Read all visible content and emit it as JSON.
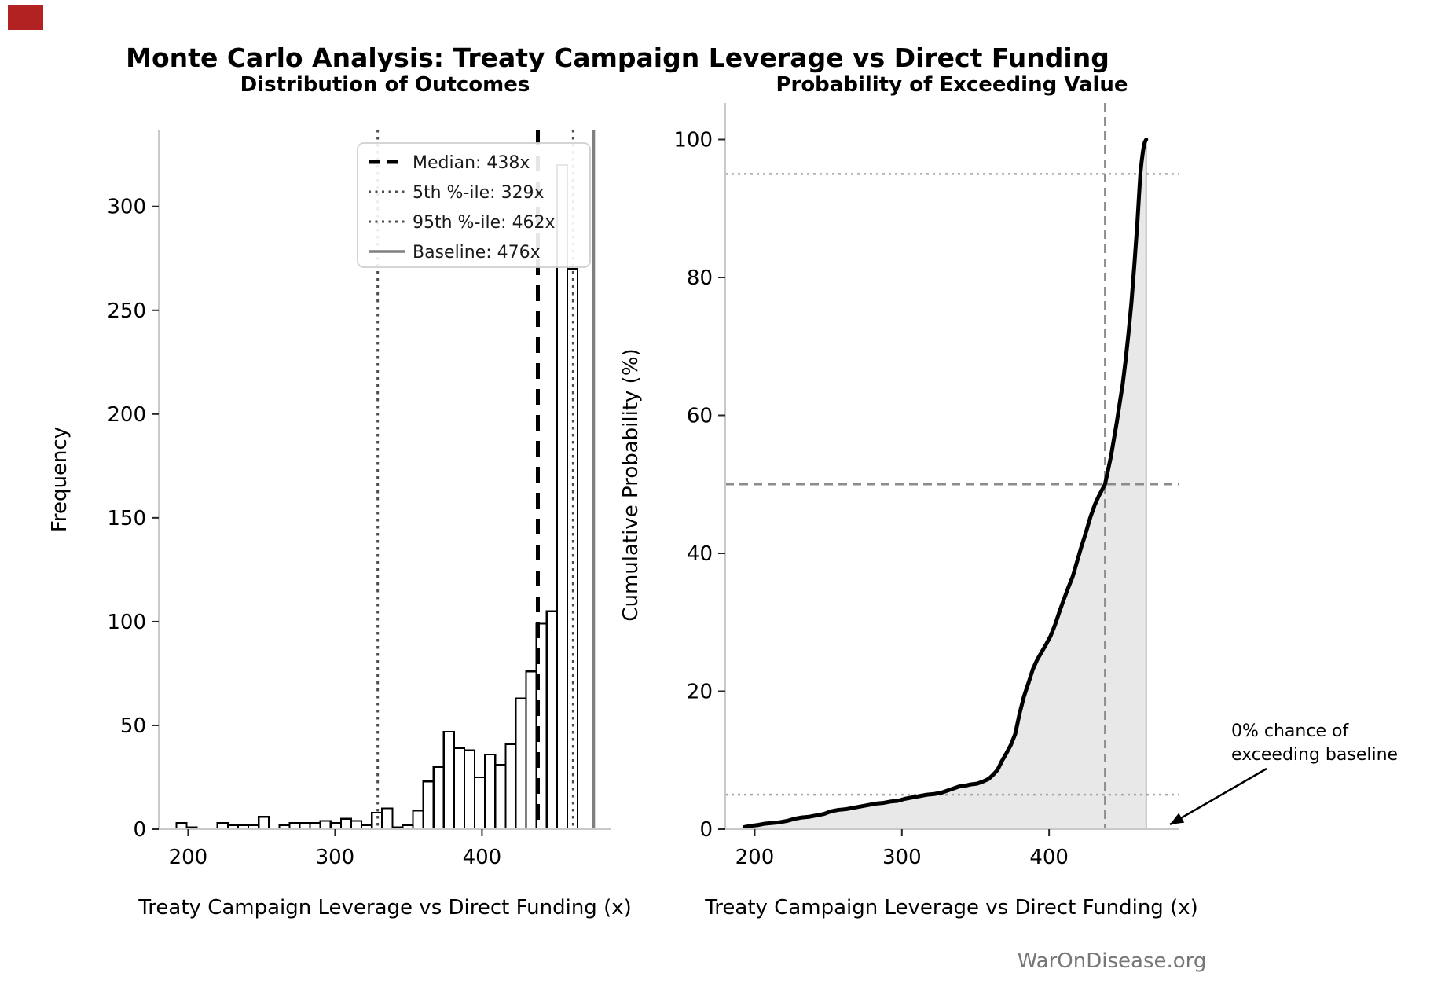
{
  "header": {
    "suptitle": "Monte Carlo Analysis: Treaty Campaign Leverage vs Direct Funding"
  },
  "footer": {
    "watermark": "WarOnDisease.org"
  },
  "colors": {
    "marker": "#b22222",
    "bar_fill": "#ffffff",
    "bar_edge": "#000000",
    "spine": "#c9c9c9",
    "tick": "#262626",
    "fill_area": "#d9d9d9",
    "curve": "#000000",
    "watermark": "#777777"
  },
  "chart_data": [
    {
      "type": "bar",
      "subtype": "histogram",
      "title": "Distribution of Outcomes",
      "xlabel": "Treaty Campaign Leverage vs Direct Funding (x)",
      "ylabel": "Frequency",
      "xlim": [
        180,
        488
      ],
      "ylim": [
        0,
        337
      ],
      "x_ticks": [
        200,
        300,
        400
      ],
      "y_ticks": [
        0,
        50,
        100,
        150,
        200,
        250,
        300
      ],
      "bin_start": 192,
      "bin_width": 7,
      "frequencies": [
        3,
        1,
        0,
        0,
        3,
        2,
        2,
        2,
        6,
        0,
        2,
        3,
        3,
        3,
        4,
        3,
        5,
        4,
        2,
        8,
        10,
        1,
        2,
        9,
        23,
        30,
        47,
        39,
        38,
        25,
        36,
        31,
        41,
        63,
        76,
        99,
        105,
        320,
        270
      ],
      "ref_lines": [
        {
          "label": "Median: 438x",
          "value": 438,
          "style": "dashed",
          "color": "#000000",
          "width": 5,
          "dash": "20 13"
        },
        {
          "label": "5th %-ile: 329x",
          "value": 329,
          "style": "dotted",
          "color": "#4d4d4d",
          "width": 3,
          "dash": "3.5 5.5"
        },
        {
          "label": "95th %-ile: 462x",
          "value": 462,
          "style": "dotted",
          "color": "#4d4d4d",
          "width": 3,
          "dash": "3.5 5.5"
        },
        {
          "label": "Baseline: 476x",
          "value": 476,
          "style": "solid",
          "color": "#7f7f7f",
          "width": 3.5,
          "dash": ""
        }
      ],
      "legend_position": "upper center",
      "grid": false
    },
    {
      "type": "line",
      "title": "Probability of Exceeding Value",
      "xlabel": "Treaty Campaign Leverage vs Direct Funding (x)",
      "ylabel": "Cumulative Probability (%)",
      "xlim": [
        180,
        488
      ],
      "ylim": [
        0,
        105.3
      ],
      "x_ticks": [
        200,
        300,
        400
      ],
      "y_ticks": [
        0,
        20,
        40,
        60,
        80,
        100
      ],
      "fill": true,
      "series": [
        {
          "name": "cumulative probability",
          "points": [
            [
              193,
              0.3
            ],
            [
              198,
              0.5
            ],
            [
              202,
              0.6
            ],
            [
              207,
              0.8
            ],
            [
              212,
              0.9
            ],
            [
              217,
              1.0
            ],
            [
              222,
              1.2
            ],
            [
              227,
              1.5
            ],
            [
              232,
              1.7
            ],
            [
              237,
              1.8
            ],
            [
              242,
              2.0
            ],
            [
              247,
              2.2
            ],
            [
              252,
              2.6
            ],
            [
              257,
              2.8
            ],
            [
              262,
              2.9
            ],
            [
              267,
              3.1
            ],
            [
              272,
              3.3
            ],
            [
              277,
              3.5
            ],
            [
              282,
              3.7
            ],
            [
              287,
              3.8
            ],
            [
              292,
              4.0
            ],
            [
              297,
              4.1
            ],
            [
              302,
              4.4
            ],
            [
              307,
              4.6
            ],
            [
              312,
              4.8
            ],
            [
              317,
              5.0
            ],
            [
              322,
              5.1
            ],
            [
              327,
              5.3
            ],
            [
              331,
              5.6
            ],
            [
              335,
              5.9
            ],
            [
              339,
              6.2
            ],
            [
              343,
              6.3
            ],
            [
              347,
              6.5
            ],
            [
              351,
              6.6
            ],
            [
              355,
              6.9
            ],
            [
              359,
              7.3
            ],
            [
              362,
              7.9
            ],
            [
              365,
              8.6
            ],
            [
              368,
              9.9
            ],
            [
              371,
              11.0
            ],
            [
              374,
              12.2
            ],
            [
              377,
              13.8
            ],
            [
              380,
              16.8
            ],
            [
              383,
              19.3
            ],
            [
              386,
              21.2
            ],
            [
              389,
              23.2
            ],
            [
              392,
              24.6
            ],
            [
              395,
              25.7
            ],
            [
              398,
              26.8
            ],
            [
              401,
              28.0
            ],
            [
              404,
              29.6
            ],
            [
              407,
              31.5
            ],
            [
              410,
              33.3
            ],
            [
              413,
              35.0
            ],
            [
              416,
              36.6
            ],
            [
              419,
              38.8
            ],
            [
              422,
              41.0
            ],
            [
              425,
              43.0
            ],
            [
              428,
              45.2
            ],
            [
              431,
              47.0
            ],
            [
              434,
              48.4
            ],
            [
              438,
              50.0
            ],
            [
              440,
              52.0
            ],
            [
              442,
              54.0
            ],
            [
              444,
              56.5
            ],
            [
              446,
              59.0
            ],
            [
              448,
              61.8
            ],
            [
              450,
              64.5
            ],
            [
              452,
              68.0
            ],
            [
              454,
              72.0
            ],
            [
              456,
              76.5
            ],
            [
              458,
              82.0
            ],
            [
              460,
              88.0
            ],
            [
              462,
              95.0
            ],
            [
              463,
              97.0
            ],
            [
              464,
              98.6
            ],
            [
              465,
              99.6
            ],
            [
              466,
              100.0
            ]
          ]
        }
      ],
      "ref_lines": [
        {
          "axis": "y",
          "value": 95,
          "style": "dotted",
          "color": "#a6a6a6",
          "width": 2.5,
          "dash": "3 5"
        },
        {
          "axis": "y",
          "value": 50,
          "style": "dashed",
          "color": "#8c8c8c",
          "width": 2.5,
          "dash": "11 7"
        },
        {
          "axis": "y",
          "value": 5,
          "style": "dotted",
          "color": "#a6a6a6",
          "width": 2.5,
          "dash": "3 5"
        },
        {
          "axis": "x",
          "value": 438,
          "style": "dashed",
          "color": "#8c8c8c",
          "width": 2.5,
          "dash": "11 7"
        }
      ],
      "annotation": {
        "line1": "0% chance of",
        "line2": "exceeding baseline"
      },
      "grid": false
    }
  ]
}
